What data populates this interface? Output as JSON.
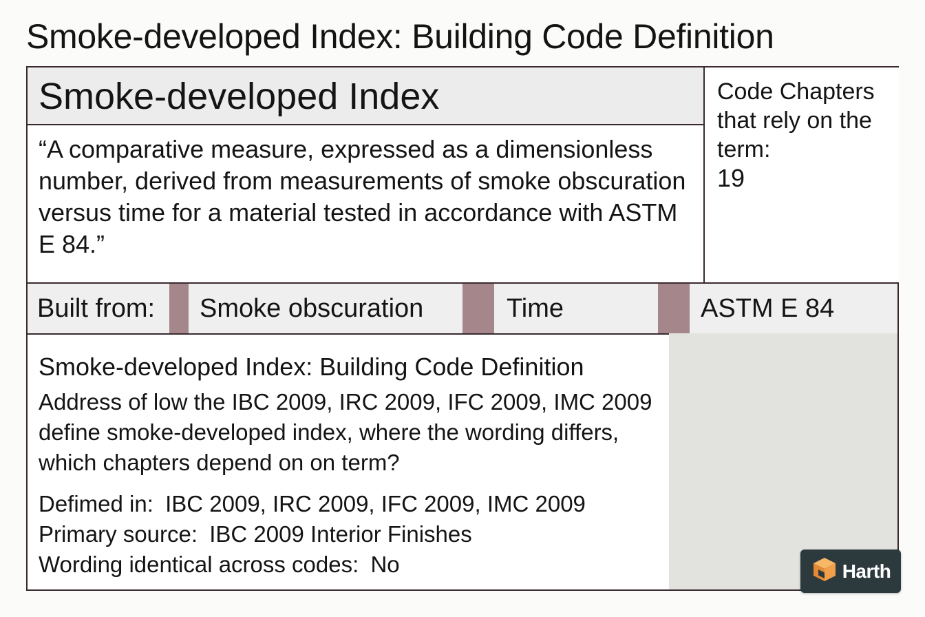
{
  "page": {
    "title": "Smoke-developed Index: Building Code Definition"
  },
  "card": {
    "term": "Smoke-developed Index",
    "definition": "“A comparative measure, expressed as a dimensionless number, derived from measurements of smoke obscuration versus time for a material tested in accordance with ASTM E 84.”",
    "chapters_label": "Code Chapters that rely on the term:",
    "chapters_count": "19",
    "built_from": {
      "label": "Built from:",
      "items": [
        "Smoke obscuration",
        "Time",
        "ASTM E 84"
      ]
    },
    "summary": {
      "title": "Smoke-developed Index: Building Code Definition",
      "question": "Address of low the IBC 2009, IRC 2009, IFC 2009, IMC 2009 define smoke-developed index, where the wording differs, which chapters depend on on term?",
      "facts": [
        {
          "key": "Defimed in:",
          "value": "IBC 2009, IRC 2009, IFC 2009, IMC 2009"
        },
        {
          "key": "Primary source:",
          "value": "IBC 2009 Interior Finishes"
        },
        {
          "key": "Wording identical across codes:",
          "value": "No"
        }
      ]
    }
  },
  "badge": {
    "text": "Harth",
    "icon": "cube-logo-icon"
  },
  "colors": {
    "border": "#3a2a30",
    "separator": "#a4868b",
    "header_bg": "#ececec",
    "shade_bg": "#e2e2df",
    "badge_bg": "#2d3a3d",
    "logo_orange": "#f0a04b"
  }
}
